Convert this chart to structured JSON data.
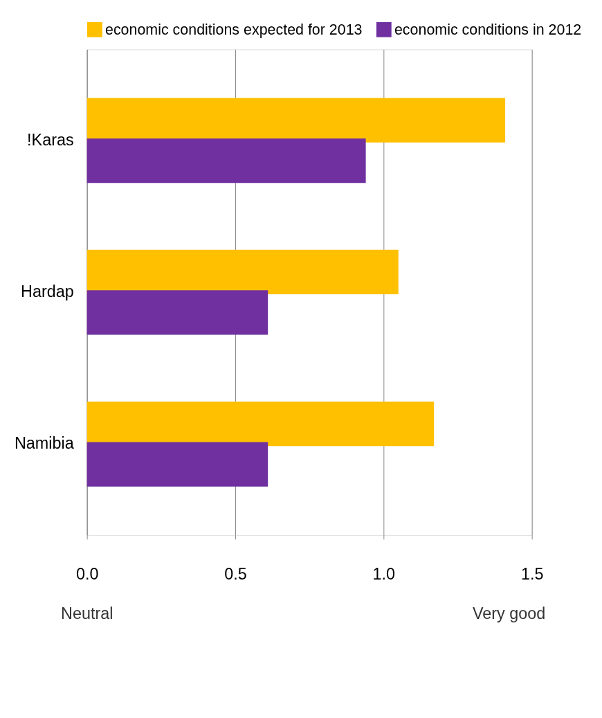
{
  "chart_data": {
    "type": "bar",
    "orientation": "horizontal",
    "categories": [
      "!Karas",
      "Hardap",
      "Namibia"
    ],
    "series": [
      {
        "name": "economic conditions expected for 2013",
        "color": "#ffc000",
        "values": [
          1.41,
          1.05,
          1.17
        ]
      },
      {
        "name": "economic conditions in 2012",
        "color": "#7030a0",
        "values": [
          0.94,
          0.61,
          0.61
        ]
      }
    ],
    "xlim": [
      0,
      1.5
    ],
    "xticks": [
      {
        "value": 0,
        "label": "0.0"
      },
      0.5,
      {
        "value": 1,
        "label": "1.0"
      },
      1.5
    ],
    "grid": "x",
    "legend": "top",
    "annotations": [
      "Neutral",
      "Very good"
    ]
  }
}
